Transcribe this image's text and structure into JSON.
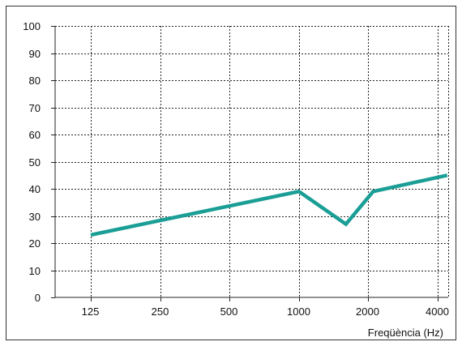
{
  "chart_data": {
    "type": "line",
    "title": "",
    "xlabel": "Freqüència (Hz)",
    "ylabel": "",
    "x_tick_labels": [
      "125",
      "250",
      "500",
      "1000",
      "2000",
      "4000"
    ],
    "x_scale": "log2",
    "y_ticks": [
      0,
      10,
      20,
      30,
      40,
      50,
      60,
      70,
      80,
      90,
      100
    ],
    "ylim": [
      0,
      100
    ],
    "grid": true,
    "legend": "none",
    "series": [
      {
        "color": "#1a9e96",
        "points": [
          {
            "x": 125,
            "y": 23
          },
          {
            "x": 1000,
            "y": 39
          },
          {
            "x": 1600,
            "y": 27
          },
          {
            "x": 2100,
            "y": 39
          },
          {
            "x": 4400,
            "y": 45
          }
        ]
      }
    ]
  },
  "colors": {
    "frame": "#333333",
    "grid": "#222222"
  }
}
